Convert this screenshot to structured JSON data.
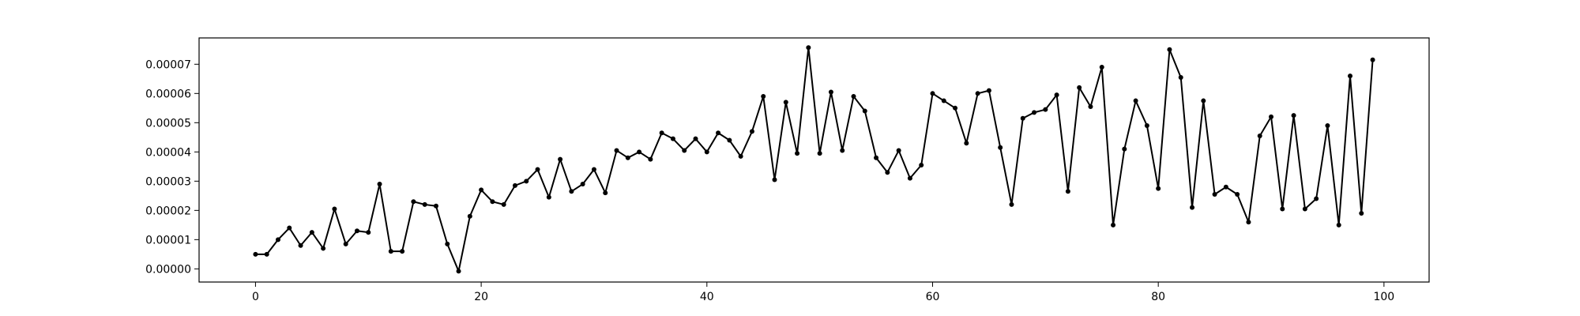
{
  "chart_data": {
    "type": "line",
    "title": "",
    "xlabel": "",
    "ylabel": "",
    "xlim": [
      -5,
      104
    ],
    "ylim": [
      -4.5e-06,
      7.9e-05
    ],
    "grid": false,
    "legend": "none",
    "line_color": "#000000",
    "marker": "dot",
    "x_ticks": [
      0,
      20,
      40,
      60,
      80,
      100
    ],
    "x_tick_labels": [
      "0",
      "20",
      "40",
      "60",
      "80",
      "100"
    ],
    "y_ticks": [
      0,
      1e-05,
      2e-05,
      3e-05,
      4e-05,
      5e-05,
      6e-05,
      7e-05
    ],
    "y_tick_labels": [
      "0.00000",
      "0.00001",
      "0.00002",
      "0.00003",
      "0.00004",
      "0.00005",
      "0.00006",
      "0.00007"
    ],
    "series": [
      {
        "x": [
          0,
          1,
          2,
          3,
          4,
          5,
          6,
          7,
          8,
          9,
          10,
          11,
          12,
          13,
          14,
          15,
          16,
          17,
          18,
          19,
          20,
          21,
          22,
          23,
          24,
          25,
          26,
          27,
          28,
          29,
          30,
          31,
          32,
          33,
          34,
          35,
          36,
          37,
          38,
          39,
          40,
          41,
          42,
          43,
          44,
          45,
          46,
          47,
          48,
          49,
          50,
          51,
          52,
          53,
          54,
          55,
          56,
          57,
          58,
          59,
          60,
          61,
          62,
          63,
          64,
          65,
          66,
          67,
          68,
          69,
          70,
          71,
          72,
          73,
          74,
          75,
          76,
          77,
          78,
          79,
          80,
          81,
          82,
          83,
          84,
          85,
          86,
          87,
          88,
          89,
          90,
          91,
          92,
          93,
          94,
          95,
          96,
          97,
          98,
          99
        ],
        "values": [
          5e-06,
          5e-06,
          1e-05,
          1.4e-05,
          8e-06,
          1.25e-05,
          7e-06,
          2.05e-05,
          8.5e-06,
          1.3e-05,
          1.25e-05,
          2.9e-05,
          6e-06,
          6e-06,
          2.3e-05,
          2.2e-05,
          2.15e-05,
          8.5e-06,
          -8e-07,
          1.8e-05,
          2.7e-05,
          2.3e-05,
          2.2e-05,
          2.85e-05,
          3e-05,
          3.4e-05,
          2.45e-05,
          3.75e-05,
          2.65e-05,
          2.9e-05,
          3.4e-05,
          2.6e-05,
          4.05e-05,
          3.8e-05,
          4e-05,
          3.75e-05,
          4.65e-05,
          4.45e-05,
          4.05e-05,
          4.45e-05,
          4e-05,
          4.65e-05,
          4.4e-05,
          3.85e-05,
          4.7e-05,
          5.9e-05,
          3.05e-05,
          5.7e-05,
          3.95e-05,
          7.57e-05,
          3.95e-05,
          6.05e-05,
          4.05e-05,
          5.9e-05,
          5.4e-05,
          3.8e-05,
          3.3e-05,
          4.05e-05,
          3.1e-05,
          3.55e-05,
          6e-05,
          5.75e-05,
          5.5e-05,
          4.3e-05,
          6e-05,
          6.1e-05,
          4.15e-05,
          2.2e-05,
          5.15e-05,
          5.35e-05,
          5.45e-05,
          5.95e-05,
          2.65e-05,
          6.2e-05,
          5.55e-05,
          6.9e-05,
          1.5e-05,
          4.1e-05,
          5.75e-05,
          4.9e-05,
          2.75e-05,
          7.5e-05,
          6.55e-05,
          2.1e-05,
          5.75e-05,
          2.55e-05,
          2.8e-05,
          2.55e-05,
          1.6e-05,
          4.55e-05,
          5.2e-05,
          2.05e-05,
          5.25e-05,
          2.05e-05,
          2.4e-05,
          4.9e-05,
          1.5e-05,
          6.6e-05,
          1.9e-05,
          7.15e-05
        ]
      }
    ]
  }
}
